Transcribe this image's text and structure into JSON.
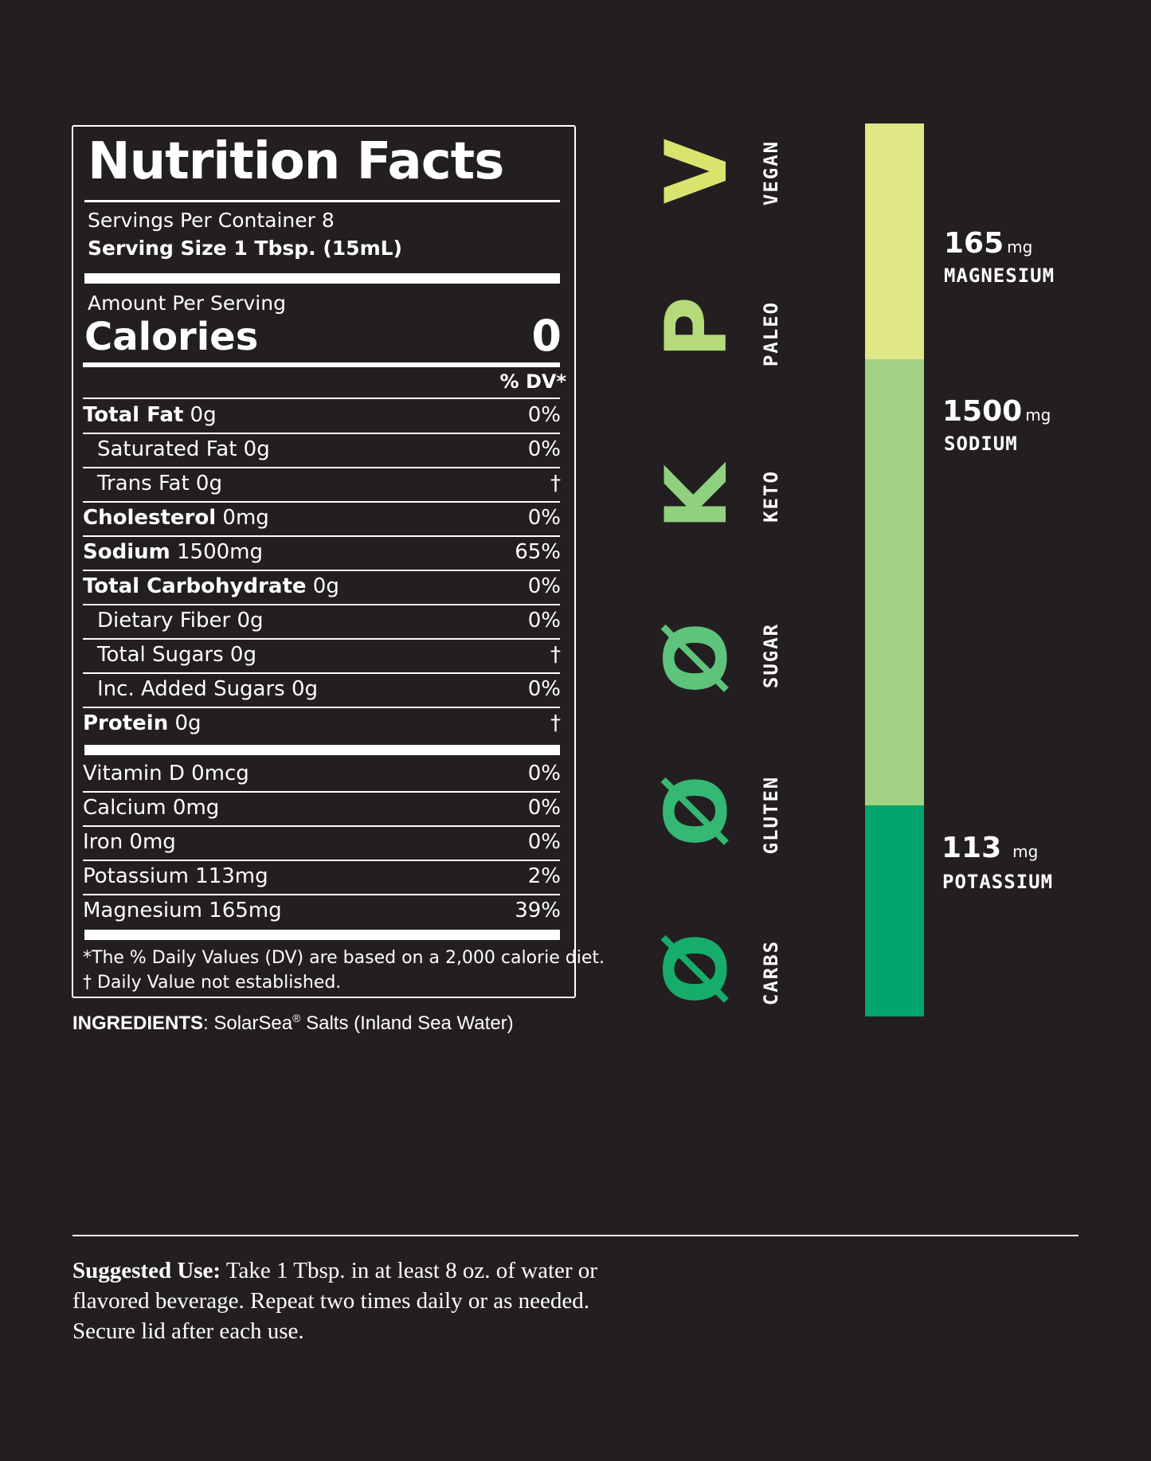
{
  "nutrition": {
    "title": "Nutrition Facts",
    "servings_per_container": "Servings Per Container 8",
    "serving_size": "Serving Size 1 Tbsp. (15mL)",
    "amount_per_serving": "Amount Per Serving",
    "calories_label": "Calories",
    "calories_value": "0",
    "dv_header": "% DV*",
    "rows": [
      {
        "bold": "Total Fat",
        "rest": " 0g",
        "dv": "0%"
      },
      {
        "bold": "",
        "rest": "Saturated Fat 0g",
        "dv": "0%"
      },
      {
        "bold": "",
        "rest": "Trans Fat 0g",
        "dv": "†"
      },
      {
        "bold": "Cholesterol",
        "rest": " 0mg",
        "dv": "0%"
      },
      {
        "bold": "Sodium",
        "rest": " 1500mg",
        "dv": "65%"
      },
      {
        "bold": "Total Carbohydrate",
        "rest": " 0g",
        "dv": "0%"
      },
      {
        "bold": "",
        "rest": "Dietary Fiber  0g",
        "dv": "0%"
      },
      {
        "bold": "",
        "rest": "Total Sugars  0g",
        "dv": "†"
      },
      {
        "bold": "",
        "rest": "Inc. Added Sugars 0g",
        "dv": "0%"
      },
      {
        "bold": "Protein",
        "rest": " 0g",
        "dv": "†"
      }
    ],
    "vitamins": [
      {
        "label": "Vitamin D  0mcg",
        "dv": "0%"
      },
      {
        "label": "Calcium  0mg",
        "dv": "0%"
      },
      {
        "label": "Iron  0mg",
        "dv": "0%"
      },
      {
        "label": "Potassium  113mg",
        "dv": "2%"
      },
      {
        "label": "Magnesium 165mg",
        "dv": "39%"
      }
    ],
    "footnote_1": "*The % Daily Values (DV) are based on a 2,000 calorie diet.",
    "footnote_2": "† Daily Value not established."
  },
  "ingredients": {
    "label": "INGREDIENTS",
    "text_a": ": SolarSea",
    "mark": "®",
    "text_b": " Salts (Inland Sea Water)"
  },
  "badges": [
    {
      "letter": "V",
      "word": "VEGAN",
      "color": "#d8e46e"
    },
    {
      "letter": "P",
      "word": "PALEO",
      "color": "#b4da7a"
    },
    {
      "letter": "K",
      "word": "KETO",
      "color": "#8fd17e"
    },
    {
      "letter": "Ø",
      "word": "SUGAR",
      "color": "#5ec47b"
    },
    {
      "letter": "Ø",
      "word": "GLUTEN",
      "color": "#34b873"
    },
    {
      "letter": "Ø",
      "word": "CARBS",
      "color": "#16ad6b"
    }
  ],
  "minerals": [
    {
      "amount": "165",
      "unit": "mg",
      "name": "MAGNESIUM",
      "color": "#e0e786"
    },
    {
      "amount": "1500",
      "unit": "mg",
      "name": "SODIUM",
      "color": "#a2d384"
    },
    {
      "amount": "113",
      "unit": "mg",
      "name": "POTASSIUM",
      "color": "#00a66b"
    }
  ],
  "suggested_use": {
    "label": "Suggested Use:",
    "text": " Take 1 Tbsp. in at least 8 oz. of water or flavored beverage. Repeat two times daily or as needed. Secure lid after each use."
  }
}
